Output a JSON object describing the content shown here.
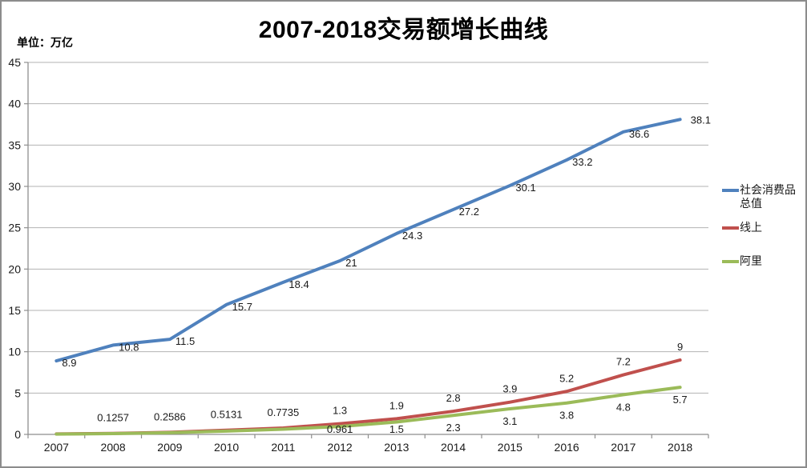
{
  "frame": {
    "background": "#FFFFFF",
    "border_color": "#8C8C8C"
  },
  "header": {
    "title": "2007-2018交易额增长曲线",
    "unit_label": "单位：万亿"
  },
  "chart_data": {
    "type": "line",
    "title": "2007-2018交易额增长曲线",
    "unit": "万亿",
    "categories": [
      "2007",
      "2008",
      "2009",
      "2010",
      "2011",
      "2012",
      "2013",
      "2014",
      "2015",
      "2016",
      "2017",
      "2018"
    ],
    "y_axis": {
      "min": 0,
      "max": 45,
      "step": 5,
      "tick_labels": [
        "0",
        "5",
        "10",
        "15",
        "20",
        "25",
        "30",
        "35",
        "40",
        "45"
      ]
    },
    "grid": true,
    "legend_position": "right",
    "series": [
      {
        "name": "社会消费品总值",
        "color": "#4F81BD",
        "values": [
          8.9,
          10.8,
          11.5,
          15.7,
          18.4,
          21,
          24.3,
          27.2,
          30.1,
          33.2,
          36.6,
          38.1
        ],
        "labels": [
          "8.9",
          "10.8",
          "11.5",
          "15.7",
          "18.4",
          "21",
          "24.3",
          "27.2",
          "30.1",
          "33.2",
          "36.6",
          "38.1"
        ]
      },
      {
        "name": "线上",
        "color": "#C0504D",
        "values": [
          0.056,
          0.1257,
          0.2586,
          0.5131,
          0.7735,
          1.3,
          1.9,
          2.8,
          3.9,
          5.2,
          7.2,
          9
        ],
        "labels": [
          "",
          "0.1257",
          "0.2586",
          "0.5131",
          "0.7735",
          "1.3",
          "1.9",
          "2.8",
          "3.9",
          "5.2",
          "7.2",
          "9"
        ]
      },
      {
        "name": "阿里",
        "color": "#9BBB59",
        "values": [
          0.04,
          0.1,
          0.21,
          0.4,
          0.63,
          0.961,
          1.5,
          2.3,
          3.1,
          3.8,
          4.8,
          5.7
        ],
        "labels": [
          "",
          "",
          "",
          "",
          "",
          "0.961",
          "1.5",
          "2.3",
          "3.1",
          "3.8",
          "4.8",
          "5.7"
        ]
      }
    ]
  },
  "style": {
    "gridline_color": "#B3B3B3",
    "axis_color": "#8E8E8E",
    "tick_label_color": "#1A1A1A",
    "data_label_color": "#1A1A1A"
  },
  "legend": {
    "items": [
      {
        "label": "社会消费品总值",
        "color": "#4F81BD"
      },
      {
        "label": "线上",
        "color": "#C0504D"
      },
      {
        "label": "阿里",
        "color": "#9BBB59"
      }
    ]
  }
}
